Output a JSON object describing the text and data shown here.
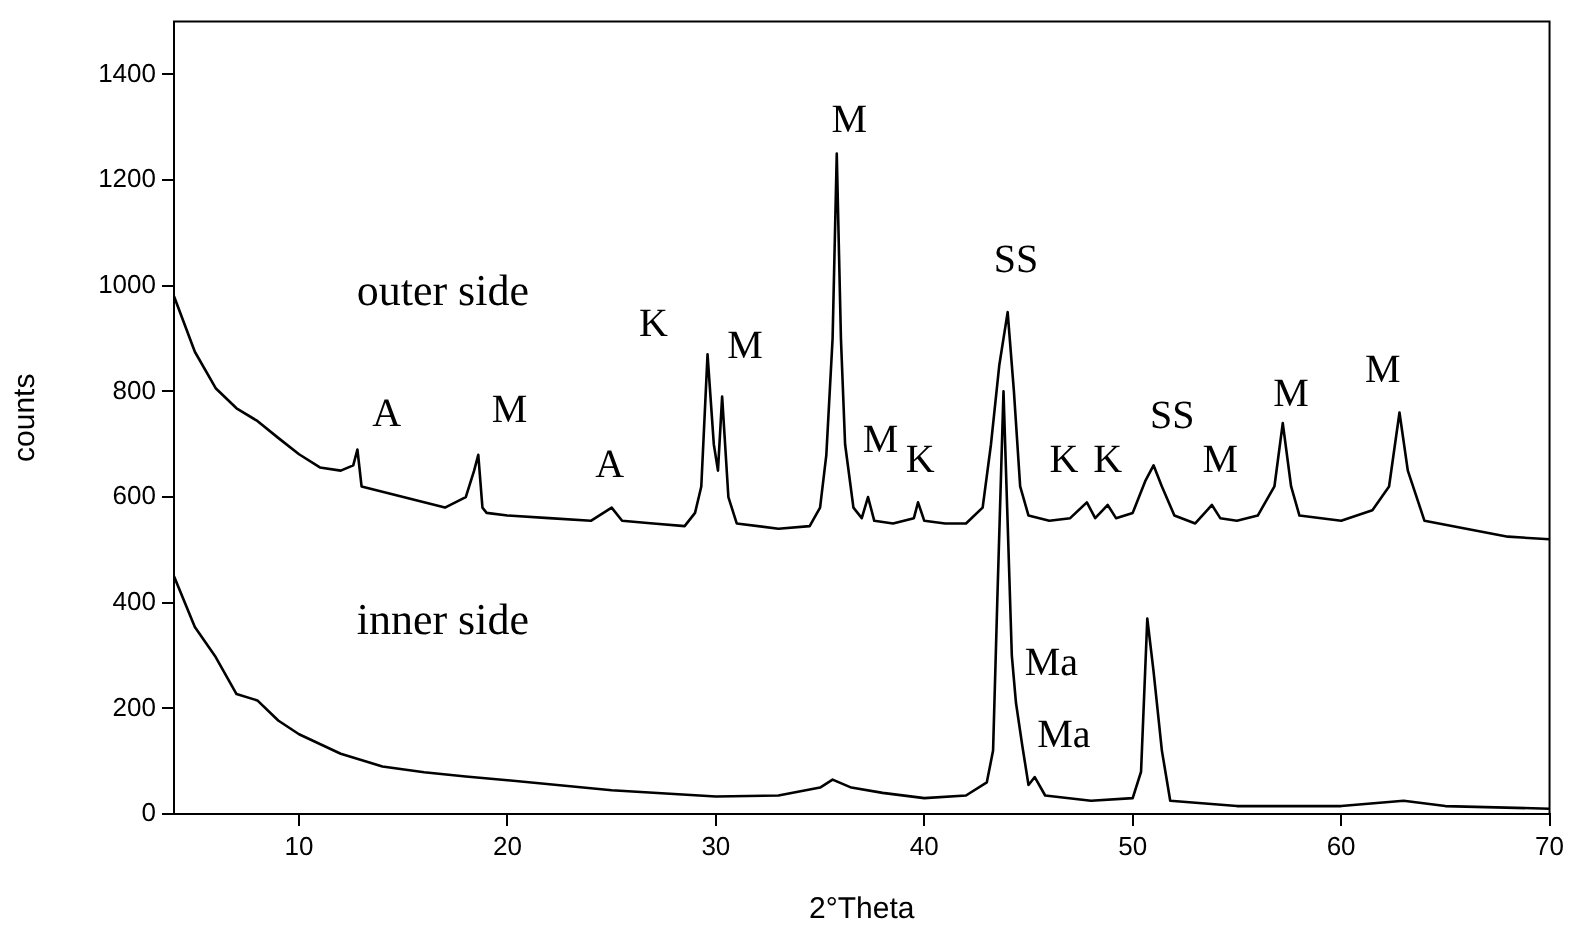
{
  "chart_data": {
    "type": "line",
    "xlabel": "2°Theta",
    "ylabel": "counts",
    "xlim": [
      4,
      70
    ],
    "xticks": [
      10,
      20,
      30,
      40,
      50,
      60,
      70
    ],
    "ylim": [
      0,
      1500
    ],
    "yticks": [
      0,
      200,
      400,
      600,
      800,
      1000,
      1200,
      1400
    ],
    "grid": false,
    "legend": false,
    "marker": "none",
    "line_style": "solid",
    "series": [
      {
        "color": "#000000",
        "x": [
          4,
          5,
          6,
          7,
          8,
          9,
          10,
          11,
          12,
          12.6,
          12.8,
          13,
          14,
          15,
          16,
          17,
          18,
          18.4,
          18.6,
          18.8,
          19,
          20,
          22,
          24,
          25,
          25.5,
          27,
          28.5,
          29,
          29.3,
          29.6,
          29.9,
          30.1,
          30.3,
          30.6,
          31,
          33,
          34.5,
          35,
          35.3,
          35.6,
          35.8,
          36,
          36.2,
          36.6,
          37,
          37.3,
          37.6,
          38.5,
          39.5,
          39.7,
          40,
          41,
          42,
          42.8,
          43.2,
          43.6,
          44,
          44.3,
          44.6,
          45,
          46,
          47,
          47.8,
          48.2,
          48.8,
          49.2,
          50,
          50.6,
          51,
          51.4,
          52,
          53,
          53.8,
          54.2,
          55,
          56,
          56.8,
          57.2,
          57.6,
          58,
          60,
          61.5,
          62.3,
          62.8,
          63.2,
          64,
          66,
          68,
          70
        ],
        "values": [
          980,
          875,
          806,
          768,
          744,
          712,
          681,
          656,
          650,
          660,
          690,
          620,
          610,
          600,
          590,
          580,
          600,
          650,
          680,
          580,
          570,
          565,
          560,
          555,
          580,
          555,
          550,
          545,
          570,
          620,
          870,
          700,
          650,
          790,
          600,
          550,
          540,
          545,
          580,
          680,
          900,
          1250,
          900,
          700,
          580,
          560,
          600,
          555,
          550,
          560,
          590,
          555,
          550,
          550,
          580,
          700,
          850,
          950,
          800,
          620,
          565,
          555,
          560,
          590,
          560,
          585,
          560,
          570,
          630,
          660,
          620,
          565,
          550,
          585,
          560,
          555,
          565,
          620,
          740,
          620,
          565,
          555,
          575,
          620,
          760,
          650,
          555,
          540,
          525,
          520
        ]
      },
      {
        "color": "#000000",
        "x": [
          4,
          5,
          6,
          7,
          8,
          9,
          10,
          12,
          14,
          16,
          18,
          20,
          25,
          30,
          33,
          35,
          35.6,
          36.5,
          38,
          40,
          42,
          43,
          43.3,
          43.5,
          43.8,
          44.2,
          44.4,
          44.7,
          45,
          45.3,
          45.8,
          48,
          50,
          50.4,
          50.7,
          51,
          51.4,
          51.8,
          55,
          60,
          63,
          65,
          70
        ],
        "values": [
          450,
          354,
          297,
          227,
          215,
          177,
          151,
          114,
          90,
          79,
          71,
          64,
          45,
          33,
          35,
          50,
          65,
          50,
          40,
          30,
          35,
          60,
          120,
          400,
          800,
          300,
          210,
          130,
          55,
          70,
          35,
          25,
          30,
          80,
          370,
          270,
          120,
          25,
          15,
          15,
          25,
          15,
          10
        ]
      }
    ],
    "annotations": [
      "outer side",
      "inner side",
      "A",
      "M",
      "A",
      "K",
      "M",
      "M",
      "SS",
      "M",
      "K",
      "K",
      "K",
      "SS",
      "M",
      "M",
      "M",
      "Ma",
      "Ma"
    ]
  }
}
